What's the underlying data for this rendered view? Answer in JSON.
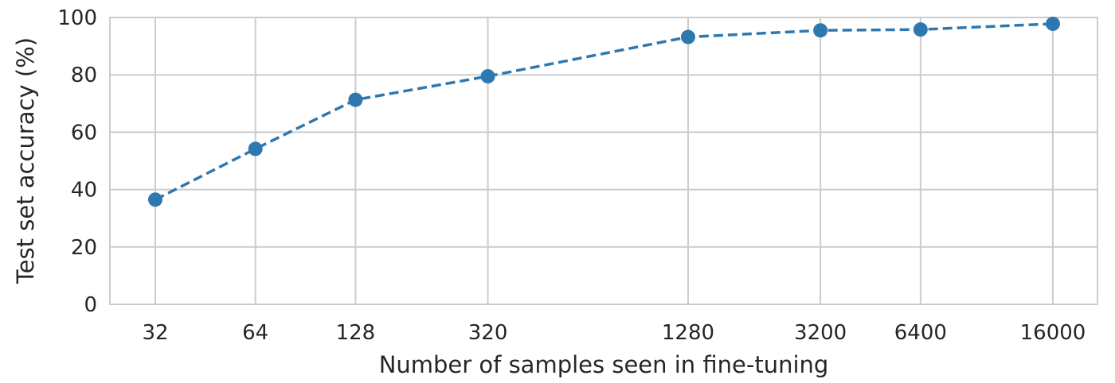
{
  "chart_data": {
    "type": "line",
    "title": "",
    "xlabel": "Number of samples seen in fine-tuning",
    "ylabel": "Test set accuracy (%)",
    "x_scale": "log",
    "x": [
      32,
      64,
      128,
      320,
      1280,
      3200,
      6400,
      16000
    ],
    "xtick_labels": [
      "32",
      "64",
      "128",
      "320",
      "1280",
      "3200",
      "6400",
      "16000"
    ],
    "ylim": [
      0,
      100
    ],
    "yticks": [
      0,
      20,
      40,
      60,
      80,
      100
    ],
    "ytick_labels": [
      "0",
      "20",
      "40",
      "60",
      "80",
      "100"
    ],
    "grid": true,
    "legend": "none",
    "series": [
      {
        "values": [
          36.5,
          54.2,
          71.3,
          79.5,
          93.2,
          95.5,
          95.8,
          97.8
        ],
        "color": "#2e78b0",
        "linestyle": "dashed",
        "marker": "circle"
      }
    ]
  }
}
